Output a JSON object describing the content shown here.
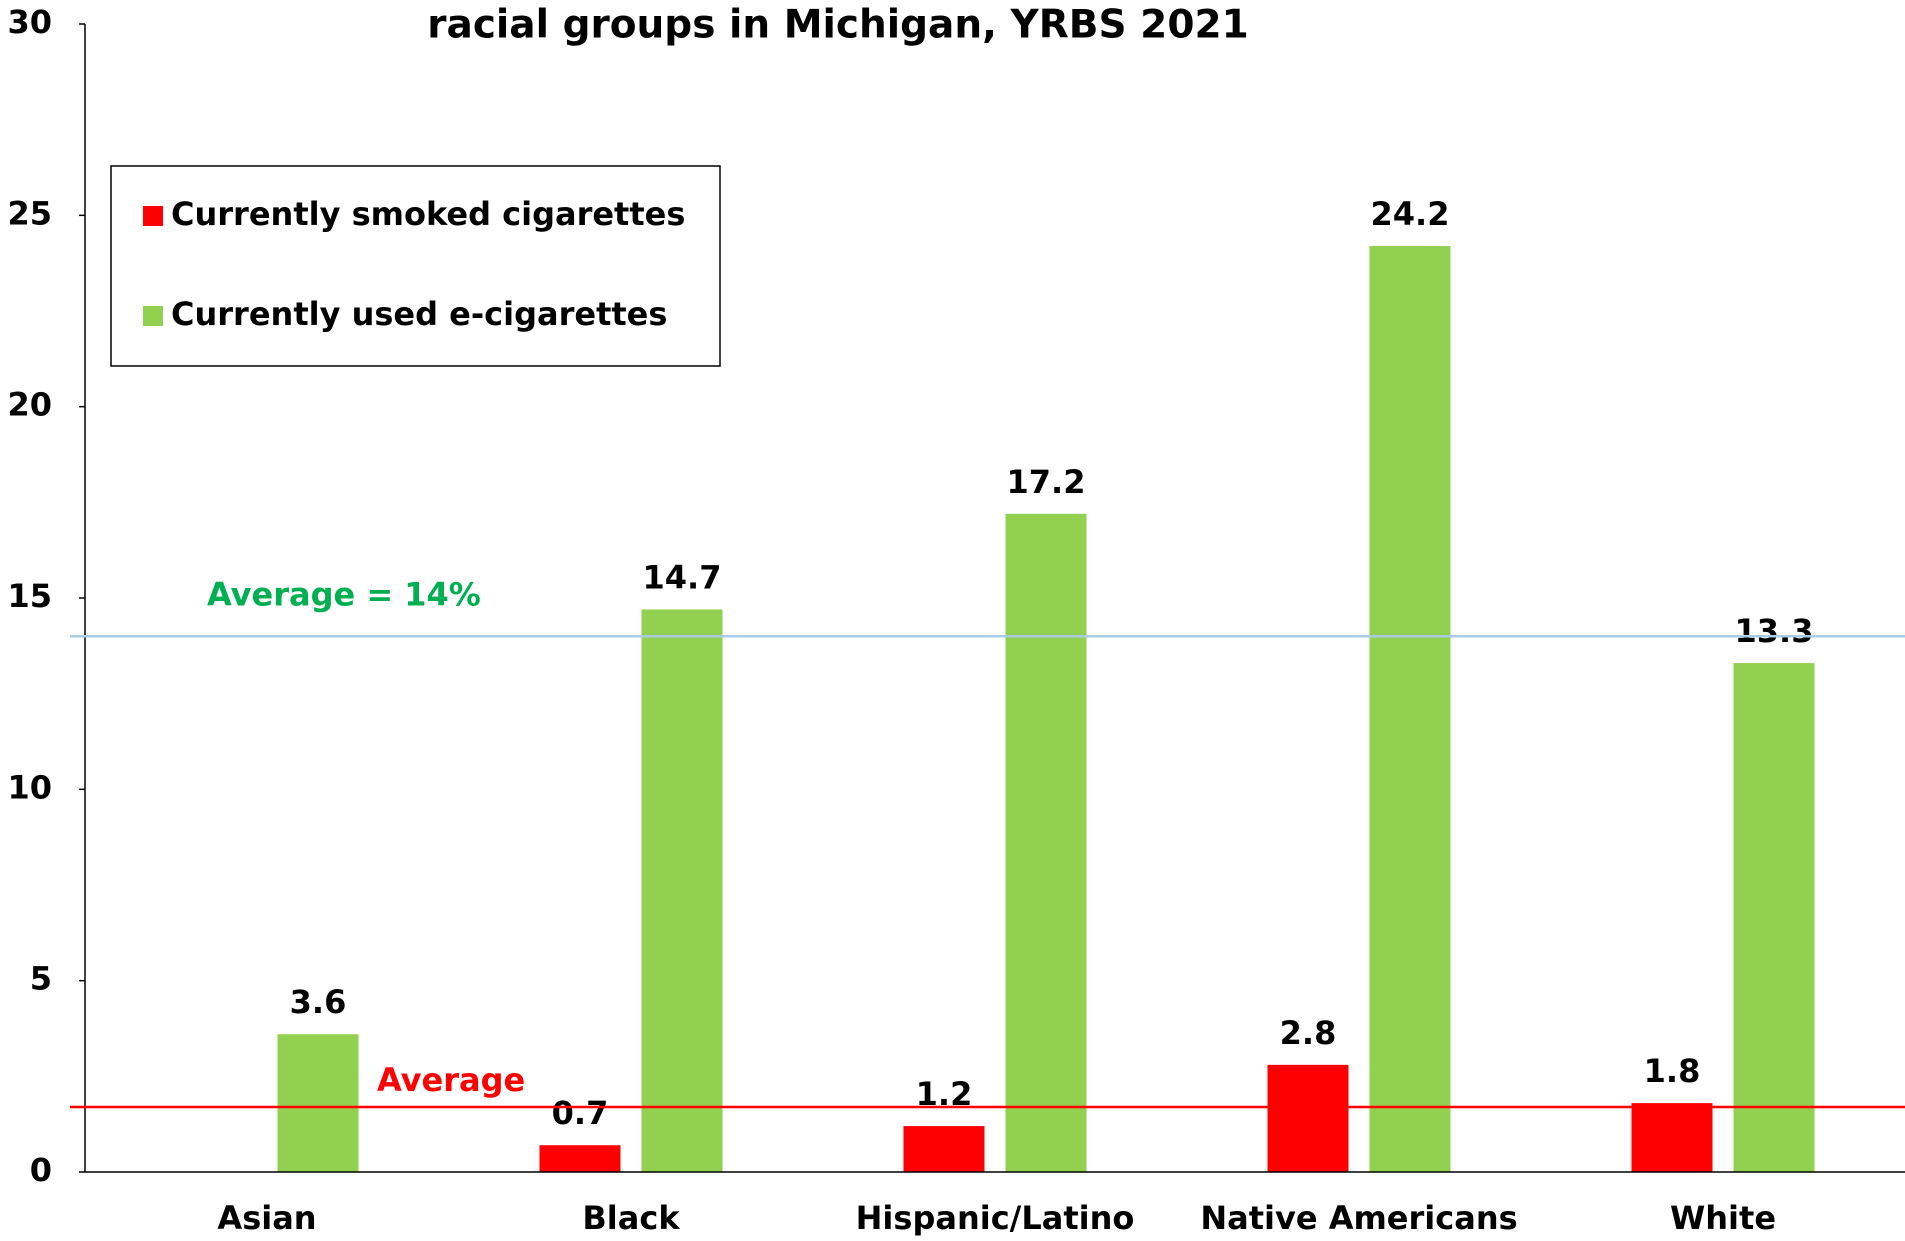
{
  "chart_data": {
    "type": "bar",
    "title": "racial groups in Michigan, YRBS 2021",
    "categories": [
      "Asian",
      "Black",
      "Hispanic/Latino",
      "Native Americans",
      "White"
    ],
    "series": [
      {
        "name": "Currently smoked cigarettes",
        "color": "#ff0000",
        "values": [
          null,
          0.7,
          1.2,
          2.8,
          1.8
        ]
      },
      {
        "name": "Currently used e-cigarettes",
        "color": "#92d050",
        "values": [
          3.6,
          14.7,
          17.2,
          24.2,
          13.3
        ]
      }
    ],
    "ylim": [
      0,
      30
    ],
    "yticks": [
      0,
      5,
      10,
      15,
      20,
      25,
      30
    ],
    "grid": false,
    "legend": "upper left",
    "reference_lines": [
      {
        "value": 14,
        "label": "Average = 14%",
        "line_color": "#a9cce3",
        "label_color": "#00b050"
      },
      {
        "value": 1.7,
        "label": "Average",
        "line_color": "#ff0000",
        "label_color": "#ff0000"
      }
    ]
  }
}
